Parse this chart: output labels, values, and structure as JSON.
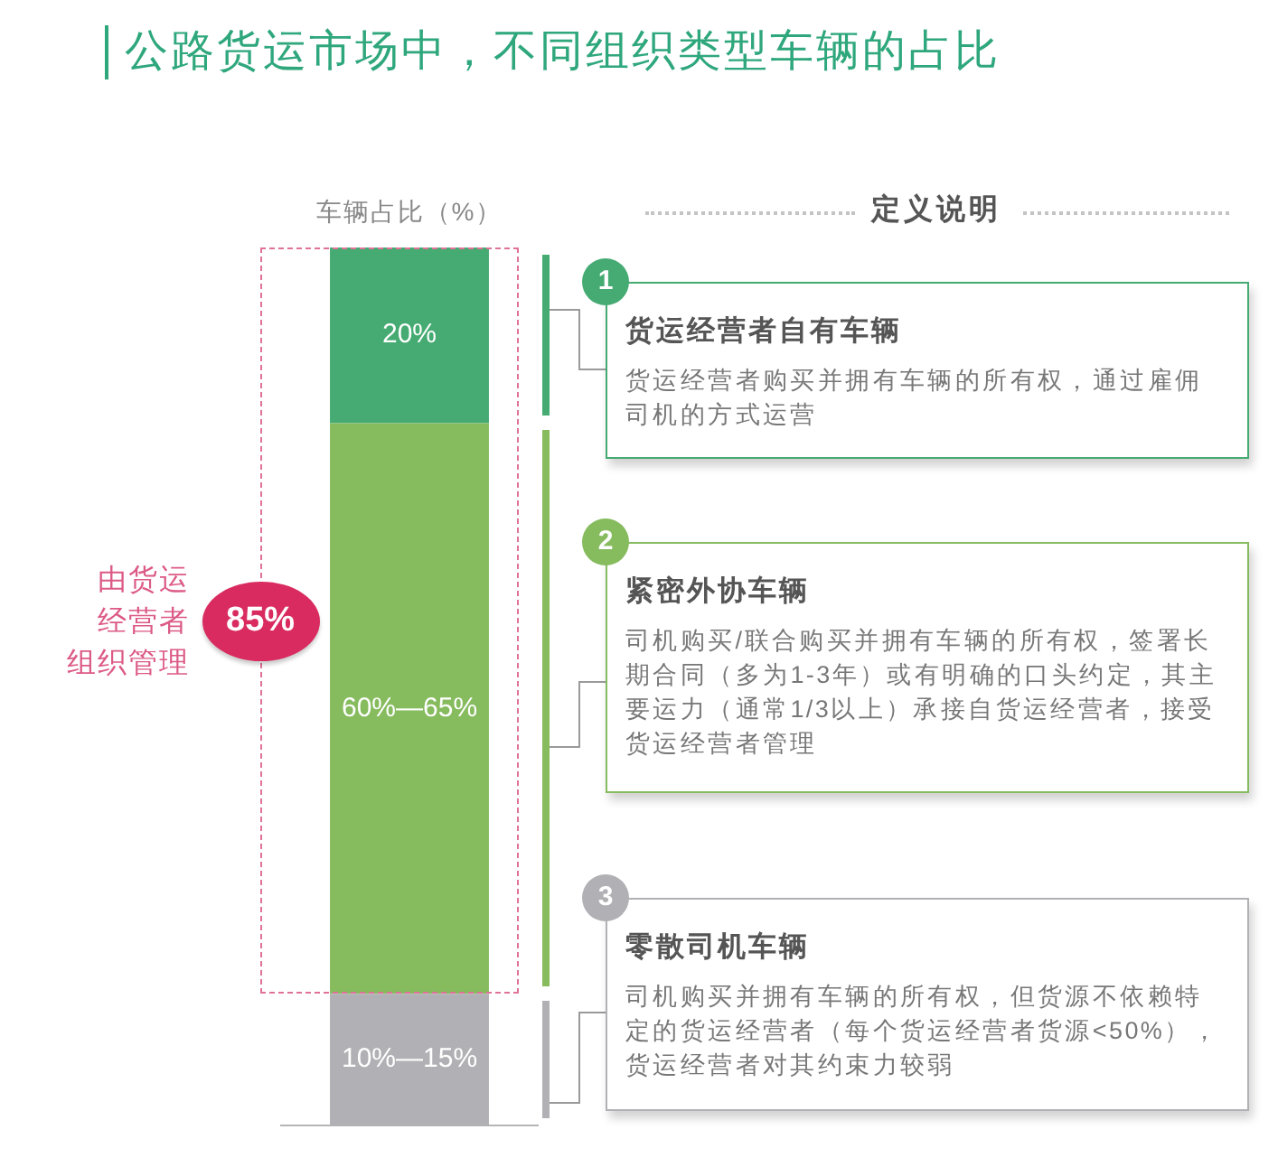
{
  "chart_data": {
    "type": "bar",
    "title": "公路货运市场中，不同组织类型车辆的占比",
    "ylabel": "车辆占比（%）",
    "categories": [
      null
    ],
    "stacked": true,
    "legend": "right",
    "series": [
      {
        "name": "零散司机车辆",
        "color": "#b1b1b5",
        "values": [
          15
        ],
        "value_labels": [
          "10%—15%"
        ]
      },
      {
        "name": "紧密外协车辆",
        "color": "#86bb5e",
        "values": [
          65
        ],
        "value_labels": [
          "60%—65%"
        ]
      },
      {
        "name": "货运经营者自有车辆",
        "color": "#45ab72",
        "values": [
          20
        ],
        "value_labels": [
          "20%"
        ]
      }
    ],
    "annotations": [
      "定义说明",
      "1",
      "货运经营者购买并拥有车辆的所有权，通过雇佣司机的方式运营",
      "2",
      "司机购买/联合购买并拥有车辆的所有权，签署长期合同（多为1-3年）或有明确的口头约定，其主要运力（通常1/3以上）承接自货运经营者，接受货运经营者管理",
      "3",
      "司机购买并拥有车辆的所有权，但货源不依赖特定的货运经营者（每个货运经营者货源<50%），货运经营者对其约束力较弱",
      "由货运经营者组织管理",
      "85%"
    ]
  }
}
